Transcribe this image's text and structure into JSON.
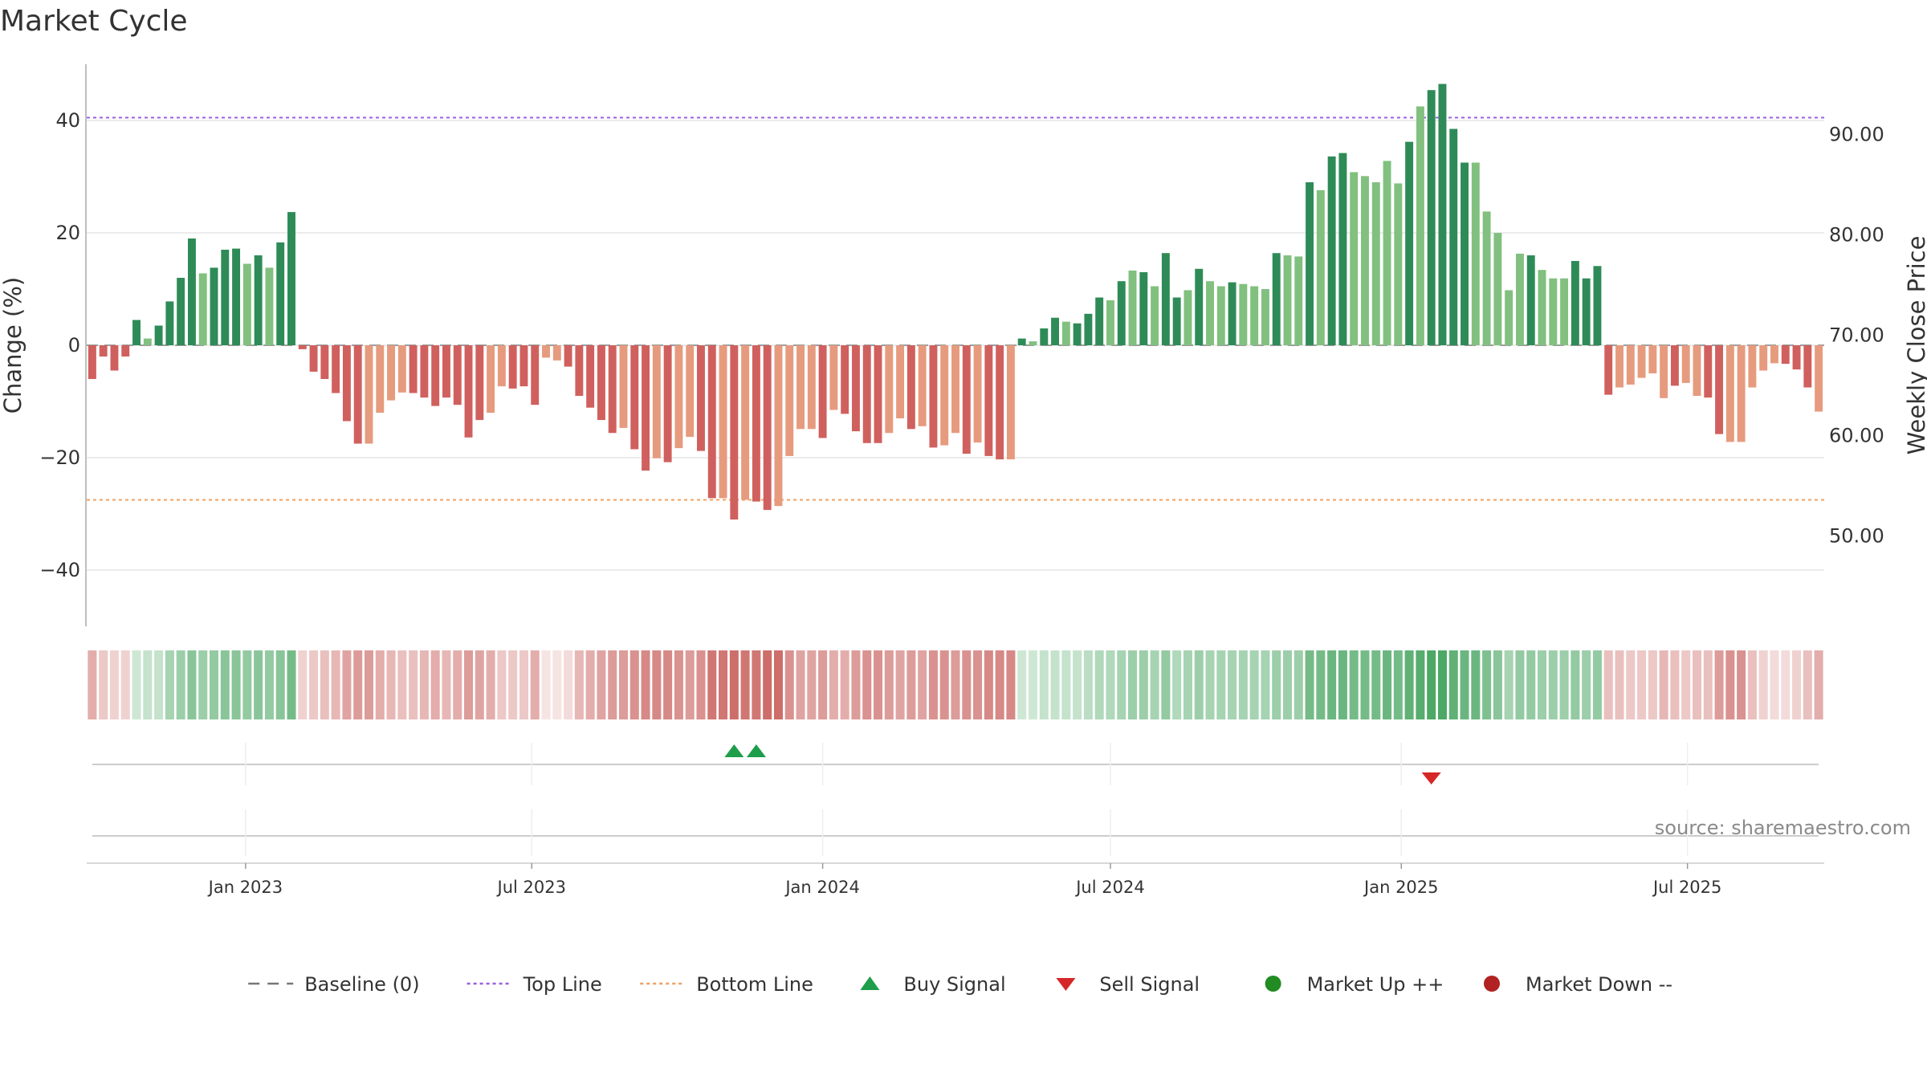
{
  "title": "Market Cycle",
  "source_text": "source: sharemaestro.com",
  "colors": {
    "strong_up": "#2e8b57",
    "light_up": "#81c07f",
    "strong_down": "#d0605e",
    "light_down": "#e69b7e",
    "top_line": "#9b5fe0",
    "bottom_line": "#f0a060",
    "buy": "#1e9e4a",
    "sell": "#d62728",
    "market_up": "#228b22",
    "market_down": "#b22222",
    "baseline": "#555555"
  },
  "chart_data": {
    "type": "bar",
    "x_start": "2022-09-26",
    "x_step_days": 7,
    "values": [
      -6,
      -2,
      -4.5,
      -2,
      4.5,
      1.2,
      3.5,
      7.8,
      12,
      19,
      12.8,
      13.8,
      17,
      17.2,
      14.5,
      16,
      13.8,
      18.3,
      23.7,
      -0.7,
      -4.7,
      -6,
      -8.5,
      -13.5,
      -17.5,
      -17.5,
      -12,
      -9.8,
      -8.4,
      -8.5,
      -9.3,
      -10.8,
      -9.3,
      -10.6,
      -16.4,
      -13.3,
      -12,
      -7.3,
      -7.7,
      -7.3,
      -10.6,
      -2.2,
      -2.7,
      -3.8,
      -9,
      -11.1,
      -13.3,
      -15.6,
      -14.7,
      -18.5,
      -22.3,
      -20.1,
      -20.8,
      -18.3,
      -16.3,
      -18.8,
      -27.2,
      -27.2,
      -31,
      -27.5,
      -27.8,
      -29.3,
      -28.6,
      -19.7,
      -14.9,
      -14.9,
      -16.5,
      -11.5,
      -12.2,
      -15.3,
      -17.4,
      -17.4,
      -15.6,
      -13,
      -14.9,
      -14.4,
      -18.2,
      -17.8,
      -15.6,
      -19.3,
      -17.3,
      -19.7,
      -20.3,
      -20.3,
      1.2,
      0.7,
      3,
      4.9,
      4.2,
      3.9,
      5.6,
      8.5,
      8,
      11.4,
      13.3,
      13,
      10.5,
      16.4,
      8.5,
      9.8,
      13.6,
      11.4,
      10.5,
      11.2,
      10.9,
      10.5,
      10,
      16.4,
      16,
      15.8,
      29,
      27.6,
      33.6,
      34.2,
      30.8,
      30.1,
      29,
      32.8,
      28.8,
      36.2,
      42.5,
      45.4,
      46.5,
      38.5,
      32.5,
      32.5,
      23.8,
      20,
      9.8,
      16.3,
      16,
      13.4,
      11.9,
      11.9,
      15,
      11.9,
      14.1,
      -8.8,
      -7.5,
      -7,
      -5.8,
      -5,
      -9.4,
      -7.2,
      -6.7,
      -9,
      -9.3,
      -15.8,
      -17.2,
      -17.2,
      -7.5,
      -4.5,
      -3.2,
      -3.3,
      -4.3,
      -7.5,
      -11.8
    ],
    "strength": [
      1,
      1,
      1,
      1,
      1,
      2,
      1,
      1,
      1,
      1,
      2,
      1,
      1,
      1,
      2,
      1,
      2,
      1,
      1,
      1,
      1,
      1,
      1,
      1,
      1,
      2,
      2,
      2,
      2,
      1,
      1,
      1,
      1,
      1,
      1,
      1,
      2,
      2,
      1,
      1,
      1,
      2,
      2,
      1,
      1,
      1,
      1,
      1,
      2,
      1,
      1,
      2,
      1,
      2,
      2,
      1,
      1,
      2,
      1,
      2,
      1,
      1,
      2,
      2,
      2,
      2,
      1,
      2,
      1,
      1,
      1,
      1,
      2,
      2,
      1,
      2,
      1,
      2,
      2,
      1,
      2,
      1,
      1,
      2,
      1,
      2,
      1,
      1,
      2,
      1,
      1,
      1,
      2,
      1,
      2,
      1,
      2,
      1,
      1,
      2,
      1,
      2,
      2,
      1,
      2,
      2,
      2,
      1,
      2,
      2,
      1,
      2,
      1,
      1,
      2,
      2,
      2,
      2,
      2,
      1,
      2,
      1,
      1,
      1,
      1,
      2,
      2,
      2,
      2,
      2,
      1,
      2,
      2,
      2,
      1,
      1,
      1,
      1,
      2,
      2,
      2,
      2,
      2,
      1,
      2,
      2,
      1,
      1,
      2,
      2,
      2,
      2,
      2,
      1,
      1,
      1
    ],
    "heat": [
      0.45,
      0.3,
      0.25,
      0.25,
      0.25,
      0.3,
      0.3,
      0.45,
      0.5,
      0.6,
      0.5,
      0.55,
      0.6,
      0.6,
      0.55,
      0.6,
      0.55,
      0.6,
      0.7,
      0.25,
      0.3,
      0.35,
      0.4,
      0.5,
      0.55,
      0.55,
      0.45,
      0.4,
      0.35,
      0.35,
      0.4,
      0.45,
      0.4,
      0.45,
      0.55,
      0.5,
      0.45,
      0.3,
      0.3,
      0.3,
      0.45,
      0.15,
      0.15,
      0.2,
      0.4,
      0.45,
      0.5,
      0.55,
      0.55,
      0.6,
      0.65,
      0.65,
      0.65,
      0.6,
      0.55,
      0.6,
      0.75,
      0.75,
      0.8,
      0.75,
      0.75,
      0.8,
      0.8,
      0.6,
      0.5,
      0.5,
      0.55,
      0.45,
      0.45,
      0.55,
      0.6,
      0.6,
      0.55,
      0.5,
      0.55,
      0.5,
      0.6,
      0.6,
      0.55,
      0.6,
      0.6,
      0.65,
      0.65,
      0.65,
      0.25,
      0.25,
      0.3,
      0.3,
      0.3,
      0.3,
      0.35,
      0.4,
      0.4,
      0.45,
      0.5,
      0.5,
      0.45,
      0.55,
      0.4,
      0.45,
      0.5,
      0.45,
      0.45,
      0.45,
      0.45,
      0.45,
      0.45,
      0.5,
      0.5,
      0.5,
      0.7,
      0.7,
      0.75,
      0.75,
      0.7,
      0.7,
      0.7,
      0.75,
      0.7,
      0.8,
      0.85,
      0.9,
      0.9,
      0.8,
      0.75,
      0.75,
      0.65,
      0.6,
      0.45,
      0.55,
      0.55,
      0.5,
      0.5,
      0.5,
      0.55,
      0.5,
      0.55,
      0.35,
      0.35,
      0.3,
      0.3,
      0.3,
      0.4,
      0.35,
      0.3,
      0.35,
      0.35,
      0.55,
      0.6,
      0.6,
      0.35,
      0.25,
      0.2,
      0.2,
      0.25,
      0.35,
      0.45
    ],
    "top_line": 40.5,
    "bottom_line": -27.5,
    "buy_signals": [
      "2023-11-06",
      "2023-11-20"
    ],
    "sell_signals": [
      "2025-01-20"
    ],
    "yleft": {
      "label": "Change (%)",
      "ticks": [
        -40,
        -20,
        0,
        20,
        40
      ],
      "tick_labels": [
        "−40",
        "−20",
        "0",
        "20",
        "40"
      ],
      "min": -50,
      "max": 50
    },
    "yright": {
      "label": "Weekly Close Price",
      "tick_labels": [
        "50.00",
        "60.00",
        "70.00",
        "80.00",
        "90.00"
      ],
      "tick_values": [
        50,
        60,
        70,
        80,
        90
      ],
      "min": 41,
      "max": 97
    },
    "x_ticks": [
      {
        "date": "2023-01-01",
        "label": "Jan 2023"
      },
      {
        "date": "2023-07-01",
        "label": "Jul 2023"
      },
      {
        "date": "2024-01-01",
        "label": "Jan 2024"
      },
      {
        "date": "2024-07-01",
        "label": "Jul 2024"
      },
      {
        "date": "2025-01-01",
        "label": "Jan 2025"
      },
      {
        "date": "2025-07-01",
        "label": "Jul 2025"
      }
    ],
    "legend": [
      {
        "label": "Baseline (0)",
        "symbol": "dash-line",
        "color": "#555555"
      },
      {
        "label": "Top Line",
        "symbol": "dot-line",
        "color": "#9b5fe0"
      },
      {
        "label": "Bottom Line",
        "symbol": "dot-line",
        "color": "#f0a060"
      },
      {
        "label": "Buy Signal",
        "symbol": "triangle-up",
        "color": "#1e9e4a"
      },
      {
        "label": "Sell Signal",
        "symbol": "triangle-down",
        "color": "#d62728"
      },
      {
        "label": "Market Up ++",
        "symbol": "circle",
        "color": "#228b22"
      },
      {
        "label": "Market Down --",
        "symbol": "circle",
        "color": "#b22222"
      }
    ],
    "legend_placement": "bottom-center",
    "grid": true
  }
}
